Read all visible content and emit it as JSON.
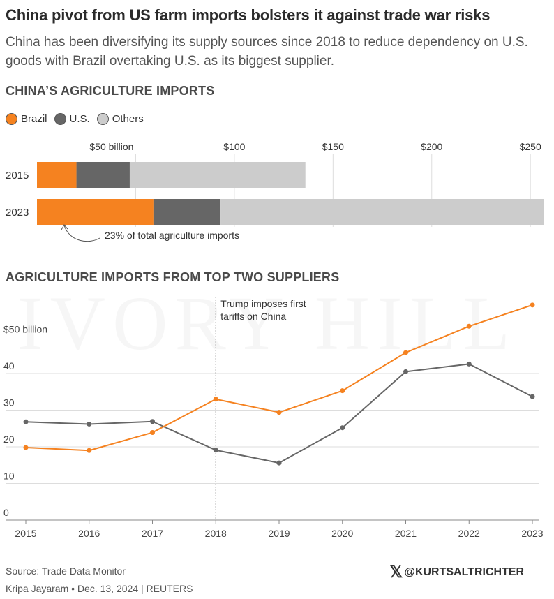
{
  "headline": "China pivot from US farm imports bolsters it against trade war risks",
  "subtitle": "China has been diversifying its supply sources since 2018 to reduce dependency on U.S. goods with Brazil overtaking U.S. as its biggest supplier.",
  "watermark": "IVORY HILL",
  "colors": {
    "brazil": "#f58220",
    "us": "#666666",
    "others": "#cccccc",
    "grid": "#dddddd"
  },
  "legend": [
    {
      "label": "Brazil",
      "color": "#f58220"
    },
    {
      "label": "U.S.",
      "color": "#666666"
    },
    {
      "label": "Others",
      "color": "#cccccc"
    }
  ],
  "footer": {
    "source": "Source: Trade Data Monitor",
    "byline": "Kripa Jayaram • Dec. 13, 2024 | REUTERS",
    "handle": "@KURTSALTRICHTER",
    "handle_icon": "x-logo-icon"
  },
  "chart_data": [
    {
      "type": "bar",
      "stacked": true,
      "orientation": "horizontal",
      "title": "CHINA’S AGRICULTURE IMPORTS",
      "categories": [
        "2015",
        "2023"
      ],
      "series": [
        {
          "name": "Brazil",
          "values": [
            20,
            59
          ]
        },
        {
          "name": "U.S.",
          "values": [
            27,
            34
          ]
        },
        {
          "name": "Others",
          "values": [
            89,
            164
          ]
        }
      ],
      "xlim": [
        0,
        257
      ],
      "ticks": [
        50,
        100,
        150,
        200,
        250
      ],
      "tick_labels": [
        "$50 billion",
        "$100",
        "$150",
        "$200",
        "$250"
      ],
      "annotation": "23% of total agriculture imports"
    },
    {
      "type": "line",
      "title": "AGRICULTURE IMPORTS FROM TOP TWO SUPPLIERS",
      "x": [
        2015,
        2016,
        2017,
        2018,
        2019,
        2020,
        2021,
        2022,
        2023
      ],
      "x_labels": [
        "2015",
        "2016",
        "2017",
        "2018",
        "2019",
        "2020",
        "2021",
        "2022",
        "2023"
      ],
      "series": [
        {
          "name": "Brazil",
          "values": [
            19.8,
            19.0,
            23.9,
            33.0,
            29.4,
            35.3,
            45.7,
            52.9,
            58.7
          ]
        },
        {
          "name": "U.S.",
          "values": [
            26.8,
            26.2,
            26.9,
            19.1,
            15.6,
            25.2,
            40.5,
            42.6,
            33.7
          ]
        }
      ],
      "ylim": [
        0,
        60
      ],
      "yticks": [
        0,
        10,
        20,
        30,
        40,
        50
      ],
      "ytick_labels": [
        "0",
        "10",
        "20",
        "30",
        "40",
        "$50 billion"
      ],
      "annotation": {
        "x": 2018,
        "line1": "Trump imposes first",
        "line2": "tariffs on China"
      }
    }
  ]
}
